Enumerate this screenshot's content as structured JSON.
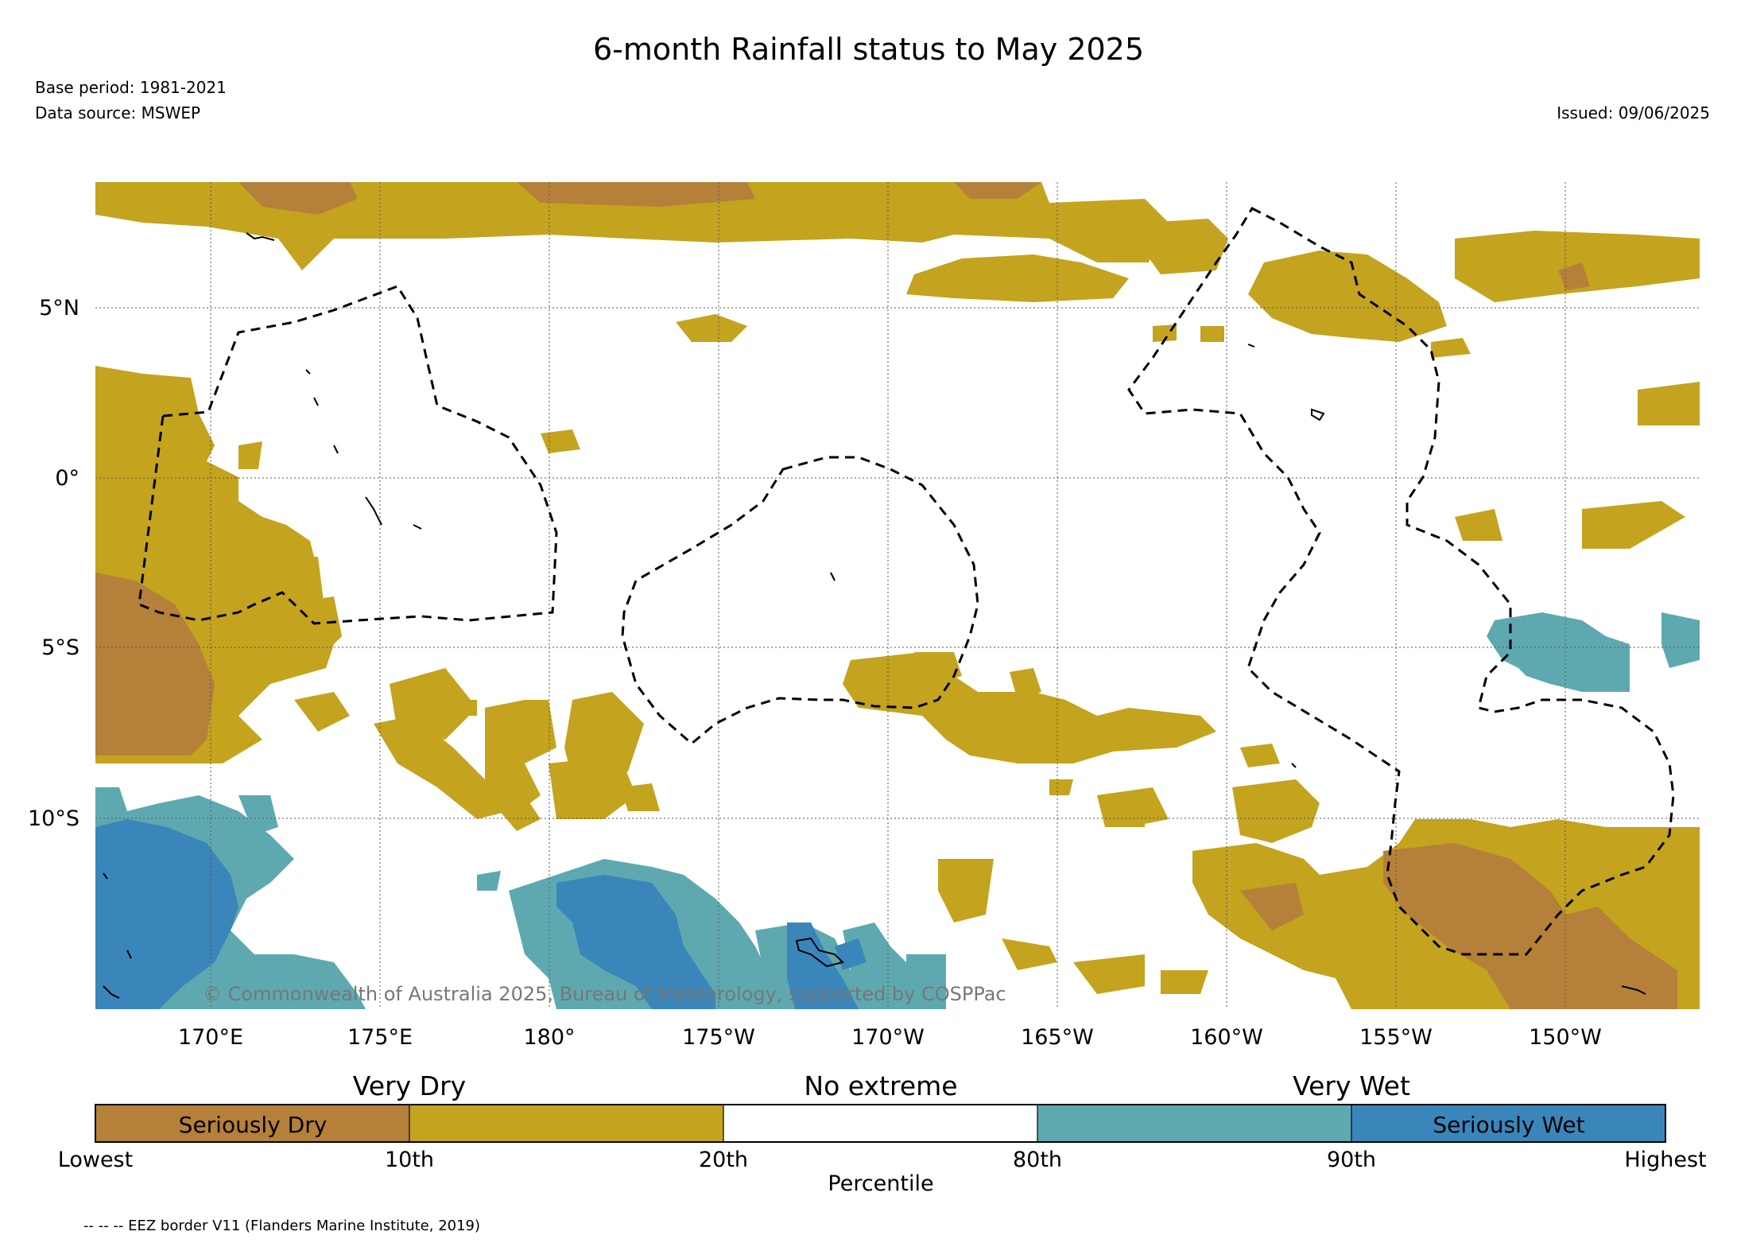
{
  "header": {
    "title": "6-month Rainfall status to May 2025",
    "base_period": "Base period: 1981-2021",
    "data_source": "Data source: MSWEP",
    "issued": "Issued: 09/06/2025"
  },
  "map": {
    "lat_labels": [
      "5°N",
      "0°",
      "5°S",
      "10°S"
    ],
    "lon_labels": [
      "170°E",
      "175°E",
      "180°",
      "175°W",
      "170°W",
      "165°W",
      "160°W",
      "155°W",
      "150°W"
    ],
    "copyright": "© Commonwealth of Australia 2025, Bureau of Meteorology, supported by COSPPac",
    "colors": {
      "seriously_dry": "#b5803a",
      "very_dry": "#c4a31e",
      "no_extreme": "#ffffff",
      "very_wet": "#5ea9b0",
      "seriously_wet": "#3a86bb"
    }
  },
  "colorbar": {
    "headers": [
      "Very Dry",
      "No extreme",
      "Very Wet"
    ],
    "segment_labels": {
      "seriously_dry": "Seriously Dry",
      "seriously_wet": "Seriously Wet"
    },
    "ticks": [
      "Lowest",
      "10th",
      "20th",
      "80th",
      "90th",
      "Highest"
    ],
    "xlabel": "Percentile"
  },
  "footnote": "-- -- -- EEZ border V11 (Flanders Marine Institute, 2019)"
}
